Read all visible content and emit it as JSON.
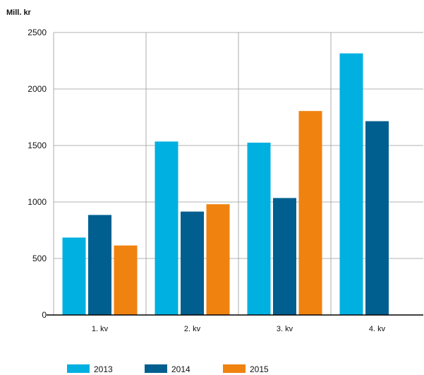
{
  "chart_data": {
    "type": "bar",
    "ylabel": "Mill. kr",
    "categories": [
      "1. kv",
      "2. kv",
      "3. kv",
      "4. kv"
    ],
    "series": [
      {
        "name": "2013",
        "color": "#00b0e0",
        "values": [
          685,
          1535,
          1525,
          2315
        ]
      },
      {
        "name": "2014",
        "color": "#005f8f",
        "values": [
          885,
          915,
          1035,
          1715
        ]
      },
      {
        "name": "2015",
        "color": "#f0820f",
        "values": [
          615,
          980,
          1805,
          null
        ]
      }
    ],
    "ylim": [
      0,
      2500
    ],
    "yticks": [
      0,
      500,
      1000,
      1500,
      2000,
      2500
    ],
    "grid": true,
    "legend_position": "bottom-left"
  }
}
